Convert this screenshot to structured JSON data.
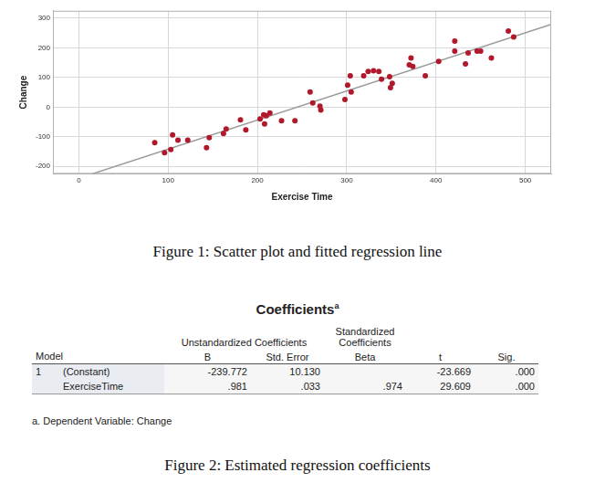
{
  "chart_data": {
    "type": "scatter",
    "x_label": "Exercise Time",
    "y_label": "Change",
    "xlim": [
      -29,
      529
    ],
    "xticks": [
      0,
      100,
      200,
      300,
      400,
      500
    ],
    "ylim": [
      -225,
      325
    ],
    "yticks": [
      -200,
      -100,
      0,
      100,
      200,
      300
    ],
    "grid": true,
    "series": [
      {
        "type": "scatter",
        "color": "#b2182b",
        "marker": "circle",
        "x": [
          85,
          96,
          103,
          105,
          111,
          122,
          143,
          146,
          162,
          165,
          181,
          187,
          203,
          207,
          208,
          210,
          214,
          227,
          242,
          259,
          262,
          270,
          271,
          298,
          301,
          305,
          304,
          319,
          324,
          330,
          336,
          339,
          348,
          349,
          351,
          370,
          372,
          374,
          388,
          403,
          421,
          421,
          433,
          436,
          446,
          450,
          462,
          481,
          487
        ],
        "values": [
          -120,
          -154,
          -143,
          -94,
          -111,
          -111,
          -137,
          -103,
          -89,
          -74,
          -43,
          -77,
          -40,
          -26,
          -57,
          -29,
          -20,
          -46,
          -46,
          51,
          14,
          3,
          -10,
          26,
          74,
          51,
          106,
          106,
          120,
          123,
          120,
          94,
          103,
          66,
          80,
          143,
          166,
          137,
          106,
          154,
          223,
          189,
          146,
          183,
          189,
          189,
          166,
          257,
          237
        ]
      },
      {
        "type": "line",
        "color": "#999999",
        "line_style": "solid",
        "x": [
          15,
          529
        ],
        "values": [
          -225,
          279
        ]
      }
    ]
  },
  "figure1": {
    "caption": "Figure 1: Scatter plot and fitted regression line"
  },
  "figure2": {
    "caption": "Figure 2: Estimated regression coefficients",
    "table": {
      "title": "Coefficients",
      "title_note": "a",
      "group_headers": [
        "Unstandardized Coefficients",
        "Standardized Coefficients"
      ],
      "columns": [
        "Model",
        "B",
        "Std. Error",
        "Beta",
        "t",
        "Sig."
      ],
      "rows": [
        [
          "1",
          "(Constant)",
          "-239.772",
          "10.130",
          null,
          "-23.669",
          ".000"
        ],
        [
          null,
          "ExerciseTime",
          ".981",
          ".033",
          ".974",
          "29.609",
          ".000"
        ]
      ],
      "footnote": "a. Dependent Variable: Change"
    }
  }
}
